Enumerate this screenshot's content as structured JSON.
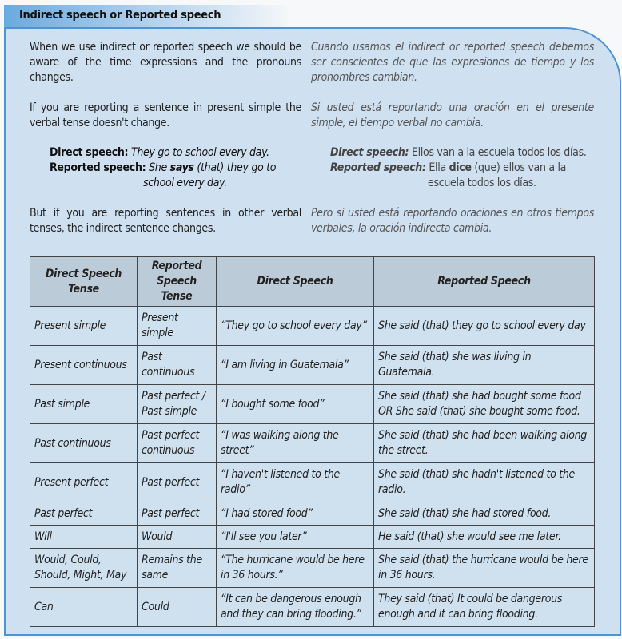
{
  "title": "Indirect speech or Reported speech",
  "paragraphs": [
    {
      "en": "When we use indirect or reported speech we should be aware of the time expressions and the pronouns changes.",
      "es": "Cuando usamos el indirect or reported speech debemos ser conscientes de que las expresiones de tiempo y los pronombres cambian."
    },
    {
      "en": "If you are reporting a sentence in present simple the verbal tense doesn't change.",
      "es": "Si usted está reportando una oración en el presente simple, el tiempo verbal no cambia."
    },
    {
      "en": "But if you are reporting sentences in other verbal tenses, the indirect sentence changes.",
      "es": "Pero si usted está reportando oraciones en otros tiempos verbales, la oración indirecta cambia."
    }
  ],
  "example": {
    "en": {
      "direct_label": "Direct speech:",
      "direct": "They go to school every day.",
      "reported_label": "Reported speech:",
      "reported_pre": "She ",
      "reported_verb": "says",
      "reported_post": " (that) they go to school every day."
    },
    "es": {
      "direct_label": "Direct speech:",
      "direct": "Ellos van a la escuela todos los días.",
      "reported_label": "Reported speech:",
      "reported_pre": "Ella ",
      "reported_verb": "dice",
      "reported_post": " (que) ellos van a la escuela todos los días."
    }
  },
  "table": {
    "headers": [
      "Direct Speech Tense",
      "Reported Speech Tense",
      "Direct Speech",
      "Reported Speech"
    ],
    "rows": [
      [
        "Present simple",
        "Present simple",
        "“They go to school every day”",
        "She said (that) they go to school every day"
      ],
      [
        "Present continuous",
        "Past continuous",
        "“I am living in Guatemala”",
        "She said (that) she was living in Guatemala."
      ],
      [
        "Past simple",
        "Past perfect / Past simple",
        "“I bought some food”",
        "She said (that) she had bought some food OR She said (that) she bought some food."
      ],
      [
        "Past continuous",
        "Past perfect continuous",
        "“I was walking along the street”",
        "She said (that) she had been walking along the street."
      ],
      [
        "Present perfect",
        "Past perfect",
        "“I haven't listened to the radio”",
        "She said (that) she hadn't listened to the radio."
      ],
      [
        "Past perfect",
        "Past perfect",
        "“I had stored food”",
        "She said (that) she had stored food."
      ],
      [
        "Will",
        "Would",
        "“I'll see you later”",
        "He said (that) she would see me later."
      ],
      [
        "Would, Could, Should, Might, May",
        "Remains the same",
        "“The hurricane would be here in 36 hours.”",
        "She said (that) the hurricane would be here in 36 hours."
      ],
      [
        "Can",
        "Could",
        "“It can be dangerous enough and they can bring flooding.”",
        "They said (that) It could be dangerous enough and it can bring flooding."
      ]
    ]
  }
}
